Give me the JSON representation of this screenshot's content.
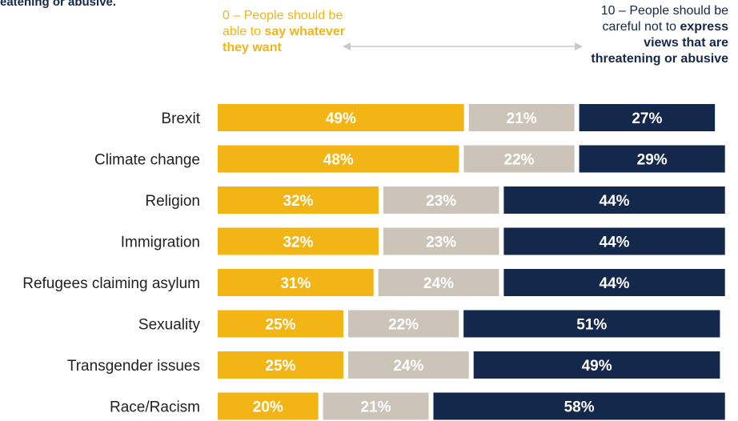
{
  "header_fragment": "eatening or abusive.",
  "legend": {
    "left_plain": "0 – People should be able to",
    "left_bold": "say whatever they want",
    "right_plain": "10 – People should be careful not to",
    "right_bold": "express views that are threatening or abusive"
  },
  "colors": {
    "say_whatever": "#f2b515",
    "middle": "#cdc4b9",
    "careful": "#14284b",
    "label_text": "#222222"
  },
  "chart_data": {
    "type": "bar",
    "orientation": "horizontal",
    "stacked": true,
    "categories": [
      "Brexit",
      "Climate change",
      "Religion",
      "Immigration",
      "Refugees claiming asylum",
      "Sexuality",
      "Transgender issues",
      "Race/Racism"
    ],
    "series": [
      {
        "values": [
          49,
          48,
          32,
          32,
          31,
          25,
          25,
          20
        ],
        "labels": [
          "49%",
          "48%",
          "32%",
          "32%",
          "31%",
          "25%",
          "25%",
          "20%"
        ],
        "color": "#f2b515"
      },
      {
        "values": [
          21,
          22,
          23,
          23,
          24,
          22,
          24,
          21
        ],
        "labels": [
          "21%",
          "22%",
          "23%",
          "23%",
          "24%",
          "22%",
          "24%",
          "21%"
        ],
        "color": "#cdc4b9"
      },
      {
        "values": [
          27,
          29,
          44,
          44,
          44,
          51,
          49,
          58
        ],
        "labels": [
          "27%",
          "29%",
          "44%",
          "44%",
          "44%",
          "51%",
          "49%",
          "58%"
        ],
        "color": "#14284b"
      }
    ],
    "xlim": [
      0,
      100
    ],
    "grid": false,
    "legend": "top"
  }
}
